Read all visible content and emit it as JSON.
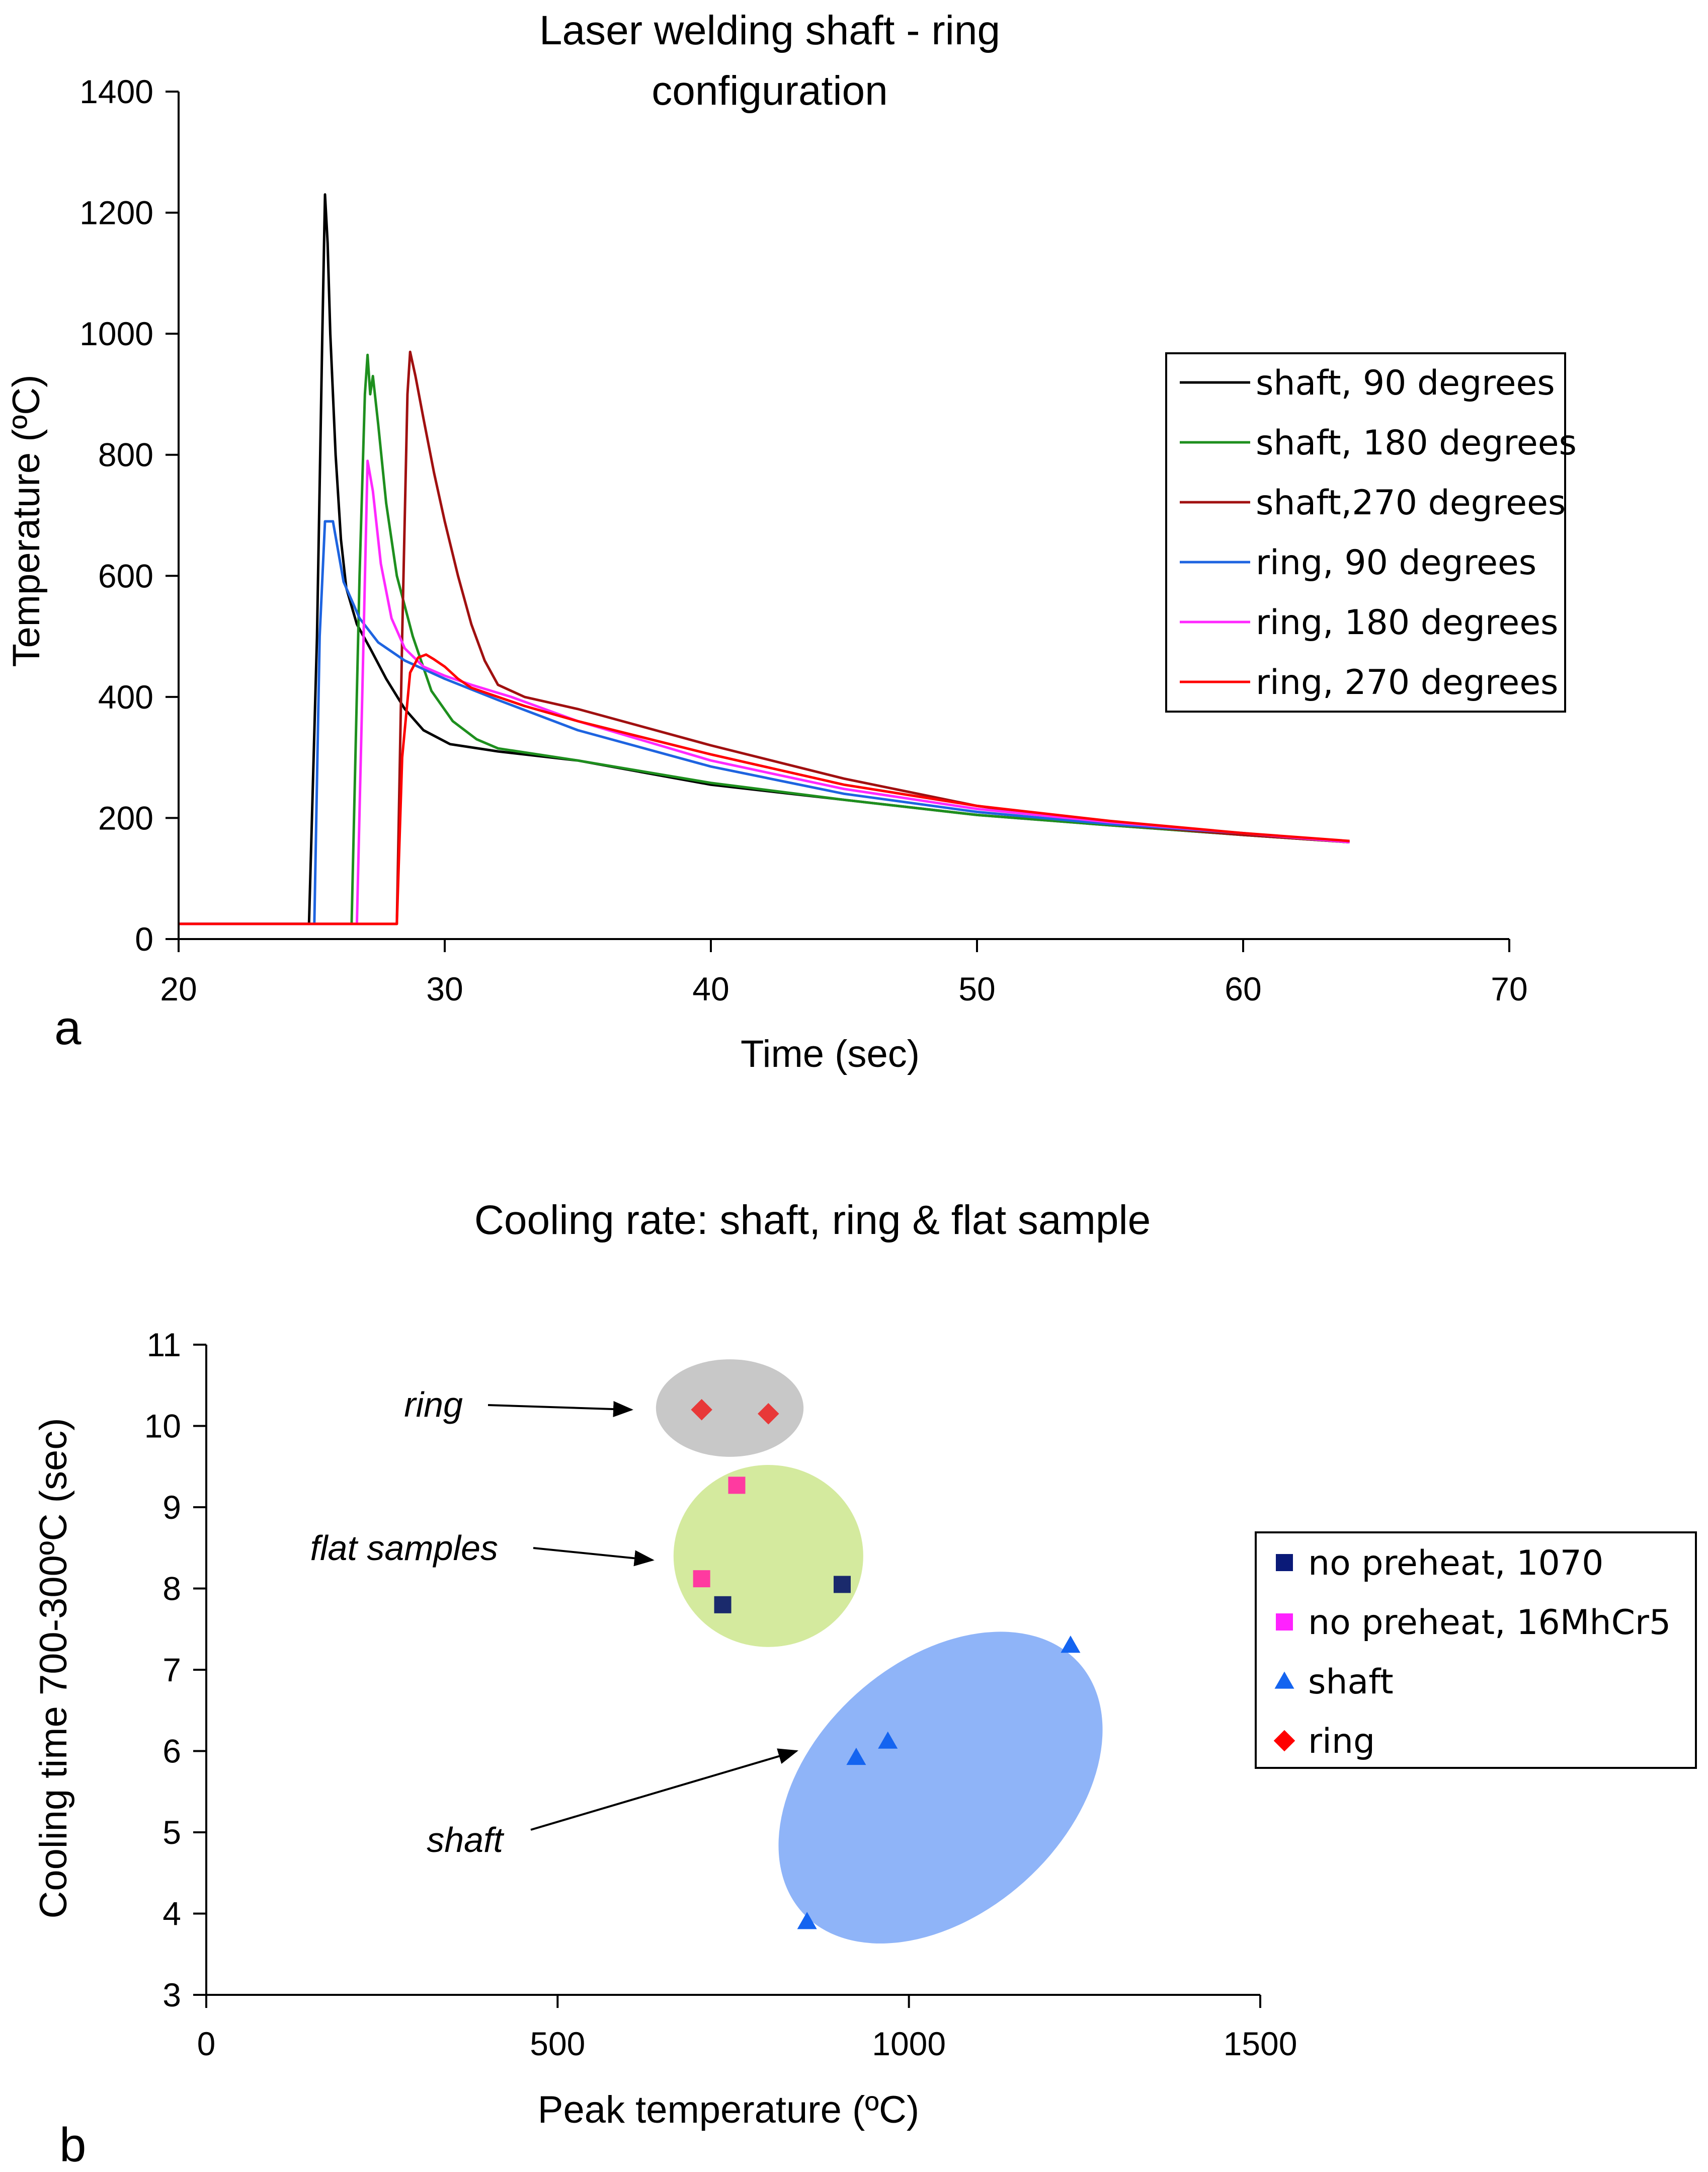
{
  "chart_data": [
    {
      "type": "line",
      "panel_label": "a",
      "title": "Laser welding shaft - ring configuration",
      "title_lines": [
        "Laser welding shaft - ring",
        "configuration"
      ],
      "xlabel": "Time (sec)",
      "ylabel": "Temperature (ºC)",
      "xlim": [
        20,
        70
      ],
      "ylim": [
        0,
        1400
      ],
      "xticks": [
        20,
        30,
        40,
        50,
        60,
        70
      ],
      "yticks": [
        0,
        200,
        400,
        600,
        800,
        1000,
        1200,
        1400
      ],
      "legend_position": "right",
      "series": [
        {
          "name": "shaft, 90 degrees",
          "color": "#000000",
          "x": [
            20,
            24.9,
            25.2,
            25.4,
            25.5,
            25.6,
            25.7,
            25.9,
            26.1,
            26.3,
            26.7,
            27.2,
            27.8,
            28.5,
            29.2,
            30.2,
            32,
            35,
            40,
            45,
            50,
            55,
            60,
            64
          ],
          "y": [
            25,
            25,
            500,
            1000,
            1230,
            1150,
            1000,
            800,
            660,
            580,
            520,
            480,
            430,
            380,
            345,
            322,
            310,
            295,
            255,
            230,
            205,
            188,
            172,
            160
          ]
        },
        {
          "name": "shaft, 180 degrees",
          "color": "#1e8f1e",
          "x": [
            20,
            26.5,
            26.8,
            27,
            27.1,
            27.2,
            27.3,
            27.5,
            27.8,
            28.2,
            28.8,
            29.5,
            30.3,
            31.2,
            32,
            35,
            40,
            45,
            50,
            55,
            60,
            64
          ],
          "y": [
            25,
            25,
            600,
            900,
            965,
            900,
            930,
            850,
            720,
            600,
            500,
            410,
            360,
            330,
            315,
            295,
            258,
            230,
            205,
            188,
            172,
            160
          ]
        },
        {
          "name": "shaft,270 degrees",
          "color": "#a01010",
          "x": [
            20,
            28.2,
            28.4,
            28.6,
            28.7,
            28.9,
            29.2,
            29.6,
            30,
            30.5,
            31,
            31.5,
            32,
            33,
            35,
            40,
            45,
            50,
            55,
            60,
            64
          ],
          "y": [
            25,
            25,
            500,
            900,
            970,
            930,
            860,
            770,
            690,
            600,
            520,
            460,
            420,
            400,
            380,
            320,
            265,
            220,
            190,
            172,
            160
          ]
        },
        {
          "name": "ring, 90 degrees",
          "color": "#1e64e0",
          "x": [
            20,
            25.1,
            25.3,
            25.5,
            25.8,
            26.2,
            26.8,
            27.5,
            28.5,
            30,
            32,
            35,
            40,
            45,
            50,
            55,
            60,
            64
          ],
          "y": [
            25,
            25,
            500,
            690,
            690,
            590,
            530,
            490,
            460,
            430,
            395,
            345,
            285,
            240,
            210,
            190,
            175,
            160
          ]
        },
        {
          "name": "ring, 180 degrees",
          "color": "#ff28ff",
          "x": [
            20,
            26.7,
            26.9,
            27.1,
            27.3,
            27.6,
            28,
            28.5,
            29.2,
            30,
            31,
            32.5,
            35,
            40,
            45,
            50,
            55,
            60,
            64
          ],
          "y": [
            25,
            25,
            400,
            790,
            740,
            620,
            530,
            480,
            450,
            435,
            420,
            400,
            360,
            295,
            248,
            215,
            193,
            175,
            160
          ]
        },
        {
          "name": "ring, 270 degrees",
          "color": "#ff0000",
          "x": [
            20,
            28.2,
            28.4,
            28.7,
            29,
            29.3,
            29.6,
            30,
            30.5,
            31,
            32,
            33,
            35,
            40,
            45,
            50,
            55,
            60,
            64
          ],
          "y": [
            25,
            25,
            300,
            440,
            465,
            470,
            462,
            450,
            430,
            415,
            400,
            385,
            360,
            305,
            255,
            220,
            195,
            175,
            162
          ]
        }
      ]
    },
    {
      "type": "scatter",
      "panel_label": "b",
      "title": "Cooling rate: shaft, ring & flat sample",
      "xlabel": "Peak temperature (ºC)",
      "ylabel": "Cooling time 700-300ºC (sec)",
      "xlim": [
        0,
        1500
      ],
      "ylim": [
        3,
        11
      ],
      "xticks": [
        0,
        500,
        1000,
        1500
      ],
      "yticks": [
        3,
        4,
        5,
        6,
        7,
        8,
        9,
        10,
        11
      ],
      "legend_position": "right",
      "series": [
        {
          "name": "no preheat, 1070",
          "marker": "square",
          "color": "#1a2a6c",
          "legend_color": "#0a1a78",
          "points": [
            [
              735,
              7.8
            ],
            [
              905,
              8.05
            ]
          ]
        },
        {
          "name": "no preheat, 16MhCr5",
          "marker": "square",
          "color": "#ff3aa0",
          "legend_color": "#ff22ff",
          "points": [
            [
              705,
              8.12
            ],
            [
              755,
              9.27
            ]
          ]
        },
        {
          "name": "shaft",
          "marker": "triangle",
          "color": "#1464f0",
          "legend_color": "#1464f0",
          "points": [
            [
              855,
              3.9
            ],
            [
              925,
              5.92
            ],
            [
              970,
              6.12
            ],
            [
              1230,
              7.3
            ]
          ]
        },
        {
          "name": "ring",
          "marker": "diamond",
          "color": "#e83838",
          "legend_color": "#ff0000",
          "points": [
            [
              705,
              10.2
            ],
            [
              800,
              10.15
            ]
          ]
        }
      ],
      "groups": [
        {
          "label": "ring",
          "color": "#c8c8c8",
          "center": [
            745,
            10.22
          ],
          "radii": [
            105,
            0.6
          ],
          "angle": 0,
          "arrow_target": [
            605,
            10.2
          ]
        },
        {
          "label": "flat samples",
          "color": "#d4ea9e",
          "center": [
            800,
            8.4
          ],
          "radii": [
            135,
            1.12
          ],
          "angle": 0,
          "arrow_target": [
            635,
            8.35
          ]
        },
        {
          "label": "shaft",
          "color": "#8fb4f8",
          "center": [
            1045,
            5.55
          ],
          "radii": [
            265,
            1.55
          ],
          "angle": -42,
          "arrow_target": [
            840,
            6.0
          ]
        }
      ]
    }
  ]
}
